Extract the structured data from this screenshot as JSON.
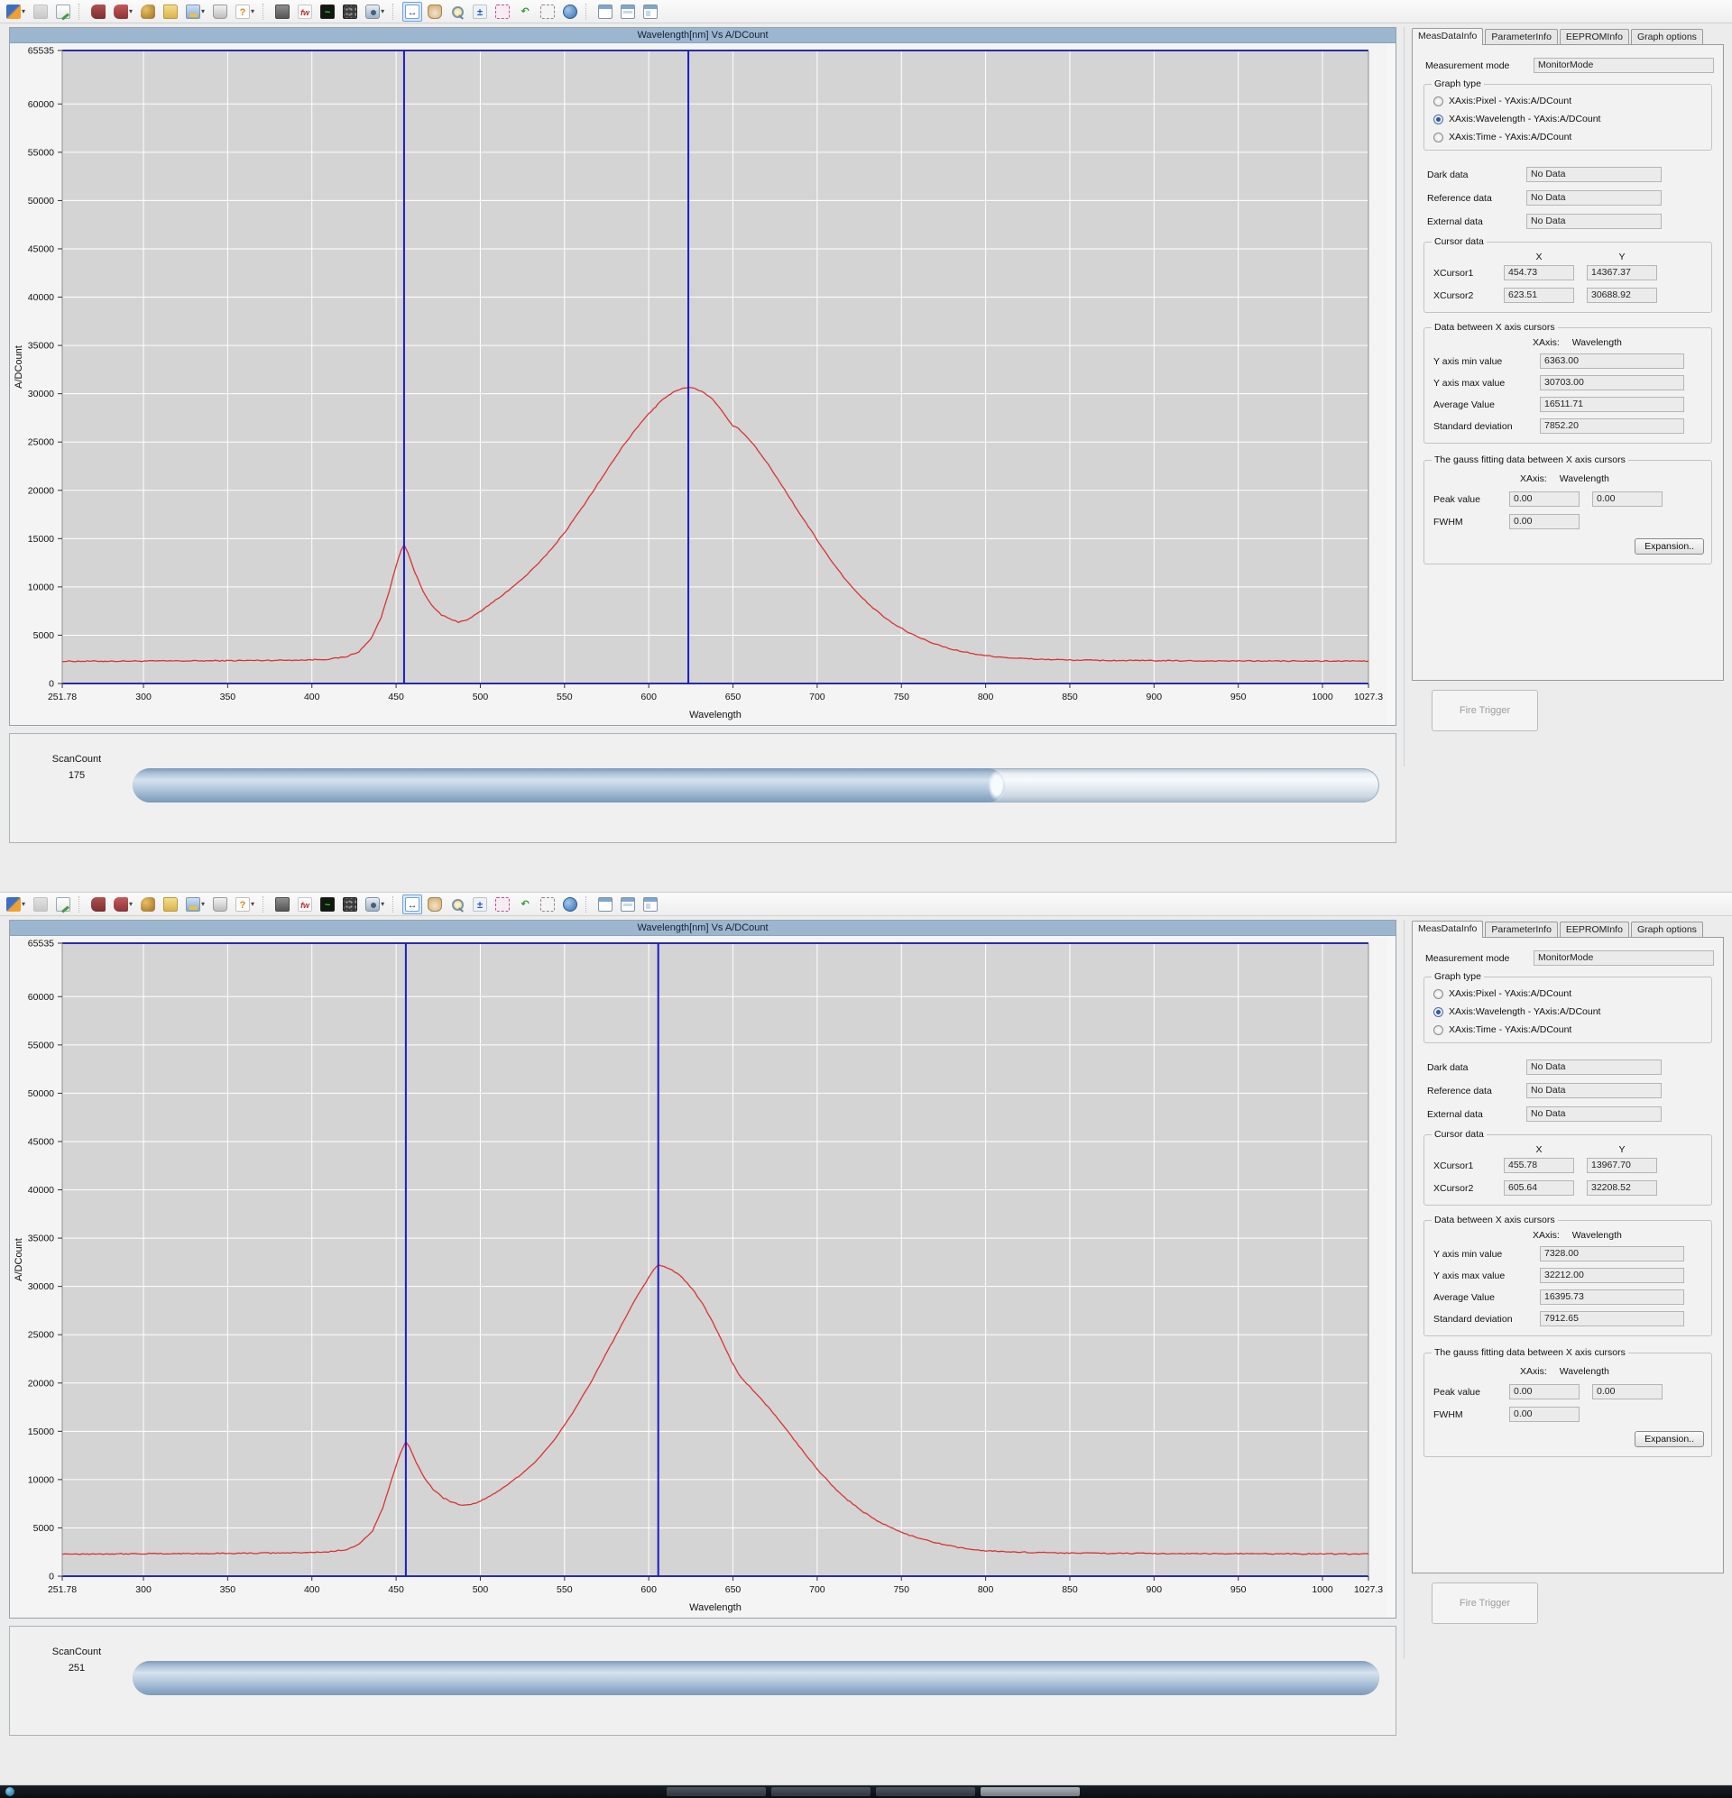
{
  "colors": {
    "curve": "#d93333",
    "cursor": "#1a1acd",
    "chart_title_bg": "#9cb6d0",
    "plot_bg": "#d4d4d4",
    "grid": "#ffffff",
    "plot_border": "#2b2ba8",
    "progress_fill": "#8fa9c6"
  },
  "toolbar": {
    "items": [
      {
        "name": "app-menu-icon",
        "k": "app",
        "dd": true
      },
      {
        "name": "save-icon",
        "k": "save"
      },
      {
        "name": "edit-settings-icon",
        "k": "edit"
      },
      {
        "sep": true
      },
      {
        "name": "connect-device-icon",
        "k": "plug1"
      },
      {
        "name": "disconnect-device-icon",
        "k": "plug2",
        "dd": true
      },
      {
        "name": "tool-icon",
        "k": "tool"
      },
      {
        "name": "open-folder-icon",
        "k": "folder"
      },
      {
        "name": "export-data-icon",
        "k": "export",
        "dd": true
      },
      {
        "name": "print-icon",
        "k": "print"
      },
      {
        "name": "help-icon",
        "k": "help",
        "dd": true
      },
      {
        "sep": true
      },
      {
        "name": "dark-measurement-icon",
        "k": "darkm"
      },
      {
        "name": "reference-measurement-icon",
        "k": "refm"
      },
      {
        "name": "monitor-graph-icon",
        "k": "wavegreen"
      },
      {
        "name": "noise-graph-icon",
        "k": "wavegray"
      },
      {
        "name": "snapshot-camera-icon",
        "k": "camera",
        "dd": true
      },
      {
        "sep": true
      },
      {
        "name": "cursor-mode-button",
        "k": "cursor",
        "active": true
      },
      {
        "name": "pan-hand-icon",
        "k": "hand"
      },
      {
        "name": "zoom-search-icon",
        "k": "lens"
      },
      {
        "name": "zoom-in-out-icon",
        "k": "zoompm"
      },
      {
        "name": "region-select-icon",
        "k": "region"
      },
      {
        "name": "undo-zoom-icon",
        "k": "undo"
      },
      {
        "name": "fit-view-icon",
        "k": "fit"
      },
      {
        "name": "link-view-icon",
        "k": "world"
      },
      {
        "sep": true
      },
      {
        "name": "window-cascade-icon",
        "k": "win1"
      },
      {
        "name": "window-tile-icon",
        "k": "win2"
      },
      {
        "name": "window-report-icon",
        "k": "win3"
      }
    ]
  },
  "taskbar": {
    "buttons": [
      "",
      "",
      "",
      ""
    ]
  },
  "panels": [
    {
      "scan": {
        "label": "ScanCount",
        "value": "175",
        "progress": 0.7
      },
      "sidebar": {
        "tabs": [
          "MeasDataInfo",
          "ParameterInfo",
          "EEPROMInfo",
          "Graph options"
        ],
        "measurement_mode_label": "Measurement mode",
        "measurement_mode_value": "MonitorMode",
        "graph_type_label": "Graph type",
        "graph_types": [
          "XAxis:Pixel - YAxis:A/DCount",
          "XAxis:Wavelength - YAxis:A/DCount",
          "XAxis:Time - YAxis:A/DCount"
        ],
        "graph_type_selected": 1,
        "dark_label": "Dark data",
        "dark_value": "No Data",
        "reference_label": "Reference data",
        "reference_value": "No Data",
        "external_label": "External data",
        "external_value": "No Data",
        "cursor_group_label": "Cursor data",
        "col_x": "X",
        "col_y": "Y",
        "xcursor1_label": "XCursor1",
        "xcursor1_x": "454.73",
        "xcursor1_y": "14367.37",
        "xcursor2_label": "XCursor2",
        "xcursor2_x": "623.51",
        "xcursor2_y": "30688.92",
        "between_label": "Data between X axis cursors",
        "xaxis_label": "XAxis:",
        "xaxis_value": "Wavelength",
        "ymin_label": "Y axis min value",
        "ymin_value": "6363.00",
        "ymax_label": "Y axis max value",
        "ymax_value": "30703.00",
        "avg_label": "Average Value",
        "avg_value": "16511.71",
        "std_label": "Standard deviation",
        "std_value": "7852.20",
        "gauss_label": "The gauss fitting data between X axis cursors",
        "gauss_xaxis_label": "XAxis:",
        "gauss_xaxis_value": "Wavelength",
        "peak_label": "Peak value",
        "peak_x": "0.00",
        "peak_y": "0.00",
        "fwhm_label": "FWHM",
        "fwhm_value": "0.00",
        "expansion_label": "Expansion..",
        "fire_label": "Fire Trigger"
      }
    },
    {
      "scan": {
        "label": "ScanCount",
        "value": "251",
        "progress": 1.0
      },
      "sidebar": {
        "tabs": [
          "MeasDataInfo",
          "ParameterInfo",
          "EEPROMInfo",
          "Graph options"
        ],
        "measurement_mode_label": "Measurement mode",
        "measurement_mode_value": "MonitorMode",
        "graph_type_label": "Graph type",
        "graph_types": [
          "XAxis:Pixel - YAxis:A/DCount",
          "XAxis:Wavelength - YAxis:A/DCount",
          "XAxis:Time - YAxis:A/DCount"
        ],
        "graph_type_selected": 1,
        "dark_label": "Dark data",
        "dark_value": "No Data",
        "reference_label": "Reference data",
        "reference_value": "No Data",
        "external_label": "External data",
        "external_value": "No Data",
        "cursor_group_label": "Cursor data",
        "col_x": "X",
        "col_y": "Y",
        "xcursor1_label": "XCursor1",
        "xcursor1_x": "455.78",
        "xcursor1_y": "13967.70",
        "xcursor2_label": "XCursor2",
        "xcursor2_x": "605.64",
        "xcursor2_y": "32208.52",
        "between_label": "Data between X axis cursors",
        "xaxis_label": "XAxis:",
        "xaxis_value": "Wavelength",
        "ymin_label": "Y axis min value",
        "ymin_value": "7328.00",
        "ymax_label": "Y axis max value",
        "ymax_value": "32212.00",
        "avg_label": "Average Value",
        "avg_value": "16395.73",
        "std_label": "Standard deviation",
        "std_value": "7912.65",
        "gauss_label": "The gauss fitting data between X axis cursors",
        "gauss_xaxis_label": "XAxis:",
        "gauss_xaxis_value": "Wavelength",
        "peak_label": "Peak value",
        "peak_x": "0.00",
        "peak_y": "0.00",
        "fwhm_label": "FWHM",
        "fwhm_value": "0.00",
        "expansion_label": "Expansion..",
        "fire_label": "Fire Trigger"
      }
    }
  ],
  "chart_data": [
    {
      "type": "line",
      "title": "Wavelength[nm] Vs A/DCount",
      "xlabel": "Wavelength",
      "ylabel": "A/DCount",
      "xlim": [
        251.78,
        1027.3
      ],
      "ylim": [
        0,
        65535
      ],
      "x_ticks": [
        "251.78",
        "300",
        "350",
        "400",
        "450",
        "500",
        "550",
        "600",
        "650",
        "700",
        "750",
        "800",
        "850",
        "900",
        "950",
        "1000",
        "1027.3"
      ],
      "y_ticks": [
        "0",
        "5000",
        "10000",
        "15000",
        "20000",
        "25000",
        "30000",
        "35000",
        "40000",
        "45000",
        "50000",
        "55000",
        "60000",
        "65535"
      ],
      "cursors": [
        454.73,
        623.51
      ],
      "legend": false,
      "grid": true,
      "series": [
        {
          "name": "spectrum",
          "color": "#d93333",
          "points": [
            [
              251.78,
              2300
            ],
            [
              280,
              2310
            ],
            [
              310,
              2330
            ],
            [
              340,
              2350
            ],
            [
              370,
              2390
            ],
            [
              395,
              2430
            ],
            [
              410,
              2520
            ],
            [
              420,
              2750
            ],
            [
              428,
              3300
            ],
            [
              435,
              4600
            ],
            [
              441,
              6800
            ],
            [
              446,
              9600
            ],
            [
              450,
              12200
            ],
            [
              453,
              13800
            ],
            [
              454.73,
              14367
            ],
            [
              457,
              13600
            ],
            [
              461,
              11600
            ],
            [
              466,
              9500
            ],
            [
              471,
              8100
            ],
            [
              477,
              7100
            ],
            [
              482,
              6650
            ],
            [
              487,
              6363
            ],
            [
              492,
              6600
            ],
            [
              498,
              7200
            ],
            [
              505,
              8100
            ],
            [
              512,
              9000
            ],
            [
              520,
              10100
            ],
            [
              528,
              11300
            ],
            [
              536,
              12700
            ],
            [
              544,
              14300
            ],
            [
              552,
              16100
            ],
            [
              560,
              18100
            ],
            [
              568,
              20200
            ],
            [
              576,
              22300
            ],
            [
              584,
              24400
            ],
            [
              592,
              26300
            ],
            [
              600,
              27900
            ],
            [
              607,
              29200
            ],
            [
              613,
              30000
            ],
            [
              618,
              30450
            ],
            [
              623.51,
              30689
            ],
            [
              628,
              30500
            ],
            [
              633,
              30100
            ],
            [
              638,
              29400
            ],
            [
              643,
              28300
            ],
            [
              647,
              27300
            ],
            [
              650,
              26700
            ],
            [
              653,
              26400
            ],
            [
              657,
              25800
            ],
            [
              662,
              24800
            ],
            [
              668,
              23400
            ],
            [
              675,
              21600
            ],
            [
              682,
              19700
            ],
            [
              690,
              17500
            ],
            [
              698,
              15400
            ],
            [
              706,
              13300
            ],
            [
              714,
              11400
            ],
            [
              722,
              9700
            ],
            [
              730,
              8300
            ],
            [
              738,
              7100
            ],
            [
              746,
              6100
            ],
            [
              754,
              5300
            ],
            [
              762,
              4650
            ],
            [
              770,
              4100
            ],
            [
              778,
              3650
            ],
            [
              786,
              3300
            ],
            [
              794,
              3050
            ],
            [
              802,
              2850
            ],
            [
              815,
              2650
            ],
            [
              830,
              2520
            ],
            [
              850,
              2430
            ],
            [
              875,
              2380
            ],
            [
              900,
              2360
            ],
            [
              930,
              2340
            ],
            [
              960,
              2330
            ],
            [
              1000,
              2320
            ],
            [
              1027.3,
              2315
            ]
          ]
        }
      ]
    },
    {
      "type": "line",
      "title": "Wavelength[nm] Vs A/DCount",
      "xlabel": "Wavelength",
      "ylabel": "A/DCount",
      "xlim": [
        251.78,
        1027.3
      ],
      "ylim": [
        0,
        65535
      ],
      "x_ticks": [
        "251.78",
        "300",
        "350",
        "400",
        "450",
        "500",
        "550",
        "600",
        "650",
        "700",
        "750",
        "800",
        "850",
        "900",
        "950",
        "1000",
        "1027.3"
      ],
      "y_ticks": [
        "0",
        "5000",
        "10000",
        "15000",
        "20000",
        "25000",
        "30000",
        "35000",
        "40000",
        "45000",
        "50000",
        "55000",
        "60000",
        "65535"
      ],
      "cursors": [
        455.78,
        605.64
      ],
      "legend": false,
      "grid": true,
      "series": [
        {
          "name": "spectrum",
          "color": "#d93333",
          "points": [
            [
              251.78,
              2300
            ],
            [
              280,
              2310
            ],
            [
              310,
              2330
            ],
            [
              340,
              2350
            ],
            [
              370,
              2390
            ],
            [
              395,
              2430
            ],
            [
              410,
              2520
            ],
            [
              420,
              2750
            ],
            [
              428,
              3300
            ],
            [
              436,
              4700
            ],
            [
              442,
              7000
            ],
            [
              447,
              9800
            ],
            [
              451,
              12000
            ],
            [
              454,
              13300
            ],
            [
              455.78,
              13968
            ],
            [
              458,
              13400
            ],
            [
              462,
              11800
            ],
            [
              467,
              10100
            ],
            [
              472,
              9000
            ],
            [
              478,
              8100
            ],
            [
              484,
              7600
            ],
            [
              490,
              7328
            ],
            [
              496,
              7500
            ],
            [
              503,
              8000
            ],
            [
              510,
              8700
            ],
            [
              518,
              9700
            ],
            [
              526,
              10800
            ],
            [
              534,
              12100
            ],
            [
              542,
              13700
            ],
            [
              550,
              15600
            ],
            [
              558,
              17800
            ],
            [
              566,
              20200
            ],
            [
              574,
              22800
            ],
            [
              582,
              25400
            ],
            [
              589,
              27700
            ],
            [
              595,
              29500
            ],
            [
              600,
              30900
            ],
            [
              603,
              31700
            ],
            [
              605.64,
              32210
            ],
            [
              609,
              32100
            ],
            [
              614,
              31700
            ],
            [
              620,
              30900
            ],
            [
              626,
              29700
            ],
            [
              632,
              28200
            ],
            [
              638,
              26300
            ],
            [
              644,
              24200
            ],
            [
              649,
              22300
            ],
            [
              653,
              21000
            ],
            [
              656,
              20300
            ],
            [
              660,
              19600
            ],
            [
              665,
              18700
            ],
            [
              671,
              17500
            ],
            [
              678,
              16000
            ],
            [
              686,
              14200
            ],
            [
              694,
              12400
            ],
            [
              702,
              10700
            ],
            [
              710,
              9200
            ],
            [
              718,
              7900
            ],
            [
              726,
              6800
            ],
            [
              734,
              5900
            ],
            [
              742,
              5150
            ],
            [
              750,
              4550
            ],
            [
              758,
              4050
            ],
            [
              766,
              3650
            ],
            [
              774,
              3300
            ],
            [
              782,
              3020
            ],
            [
              790,
              2800
            ],
            [
              800,
              2650
            ],
            [
              815,
              2520
            ],
            [
              832,
              2440
            ],
            [
              855,
              2390
            ],
            [
              880,
              2360
            ],
            [
              910,
              2340
            ],
            [
              950,
              2325
            ],
            [
              1000,
              2315
            ],
            [
              1027.3,
              2310
            ]
          ]
        }
      ]
    }
  ]
}
